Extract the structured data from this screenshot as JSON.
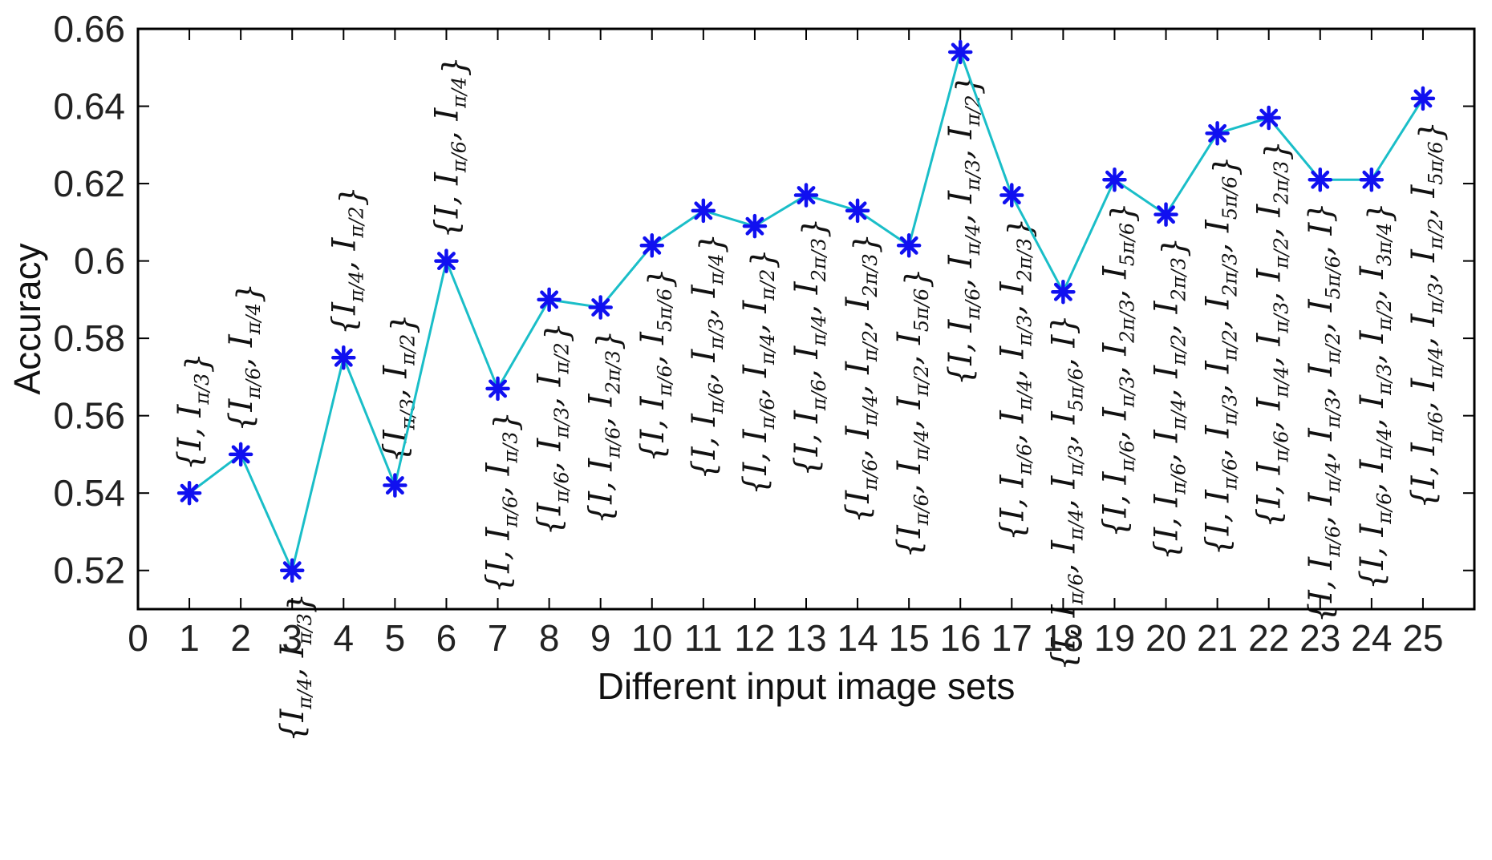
{
  "chart_data": {
    "type": "line",
    "xlabel": "Different input image sets",
    "ylabel": "Accuracy",
    "xlim": [
      0,
      26
    ],
    "ylim": [
      0.51,
      0.66
    ],
    "x_ticks": [
      "0",
      "1",
      "2",
      "3",
      "4",
      "5",
      "6",
      "7",
      "8",
      "9",
      "10",
      "11",
      "12",
      "13",
      "14",
      "15",
      "16",
      "17",
      "18",
      "19",
      "20",
      "21",
      "22",
      "23",
      "24",
      "25"
    ],
    "y_ticks": [
      "0.52",
      "0.54",
      "0.56",
      "0.58",
      "0.6",
      "0.62",
      "0.64",
      "0.66"
    ],
    "grid": false,
    "colors": {
      "line": "#1ABEC8",
      "marker": "#1010F0",
      "axes": "#000000"
    },
    "marker": "asterisk",
    "x": [
      1,
      2,
      3,
      4,
      5,
      6,
      7,
      8,
      9,
      10,
      11,
      12,
      13,
      14,
      15,
      16,
      17,
      18,
      19,
      20,
      21,
      22,
      23,
      24,
      25
    ],
    "values": [
      0.54,
      0.55,
      0.52,
      0.575,
      0.542,
      0.6,
      0.567,
      0.59,
      0.588,
      0.604,
      0.613,
      0.609,
      0.617,
      0.613,
      0.604,
      0.654,
      0.617,
      0.592,
      0.621,
      0.612,
      0.633,
      0.637,
      0.621,
      0.621,
      0.642
    ],
    "point_labels": [
      [
        [
          "I",
          ""
        ],
        [
          "I",
          "π/3"
        ]
      ],
      [
        [
          "I",
          "π/6"
        ],
        [
          "I",
          "π/4"
        ]
      ],
      [
        [
          "I",
          "π/4"
        ],
        [
          "I",
          "π/3"
        ]
      ],
      [
        [
          "I",
          "π/4"
        ],
        [
          "I",
          "π/2"
        ]
      ],
      [
        [
          "I",
          "π/3"
        ],
        [
          "I",
          "π/2"
        ]
      ],
      [
        [
          "I",
          ""
        ],
        [
          "I",
          "π/6"
        ],
        [
          "I",
          "π/4"
        ]
      ],
      [
        [
          "I",
          ""
        ],
        [
          "I",
          "π/6"
        ],
        [
          "I",
          "π/3"
        ]
      ],
      [
        [
          "I",
          "π/6"
        ],
        [
          "I",
          "π/3"
        ],
        [
          "I",
          "π/2"
        ]
      ],
      [
        [
          "I",
          ""
        ],
        [
          "I",
          "π/6"
        ],
        [
          "I",
          "2π/3"
        ]
      ],
      [
        [
          "I",
          ""
        ],
        [
          "I",
          "π/6"
        ],
        [
          "I",
          "5π/6"
        ]
      ],
      [
        [
          "I",
          ""
        ],
        [
          "I",
          "π/6"
        ],
        [
          "I",
          "π/3"
        ],
        [
          "I",
          "π/4"
        ]
      ],
      [
        [
          "I",
          ""
        ],
        [
          "I",
          "π/6"
        ],
        [
          "I",
          "π/4"
        ],
        [
          "I",
          "π/2"
        ]
      ],
      [
        [
          "I",
          ""
        ],
        [
          "I",
          "π/6"
        ],
        [
          "I",
          "π/4"
        ],
        [
          "I",
          "2π/3"
        ]
      ],
      [
        [
          "I",
          "π/6"
        ],
        [
          "I",
          "π/4"
        ],
        [
          "I",
          "π/2"
        ],
        [
          "I",
          "2π/3"
        ]
      ],
      [
        [
          "I",
          "π/6"
        ],
        [
          "I",
          "π/4"
        ],
        [
          "I",
          "π/2"
        ],
        [
          "I",
          "5π/6"
        ]
      ],
      [
        [
          "I",
          ""
        ],
        [
          "I",
          "π/6"
        ],
        [
          "I",
          "π/4"
        ],
        [
          "I",
          "π/3"
        ],
        [
          "I",
          "π/2"
        ]
      ],
      [
        [
          "I",
          ""
        ],
        [
          "I",
          "π/6"
        ],
        [
          "I",
          "π/4"
        ],
        [
          "I",
          "π/3"
        ],
        [
          "I",
          "2π/3"
        ]
      ],
      [
        [
          "I",
          ""
        ],
        [
          "I",
          "π/6"
        ],
        [
          "I",
          "π/4"
        ],
        [
          "I",
          "π/3"
        ],
        [
          "I",
          "5π/6"
        ],
        [
          "I",
          ""
        ]
      ],
      [
        [
          "I",
          ""
        ],
        [
          "I",
          "π/6"
        ],
        [
          "I",
          "π/3"
        ],
        [
          "I",
          "2π/3"
        ],
        [
          "I",
          "5π/6"
        ]
      ],
      [
        [
          "I",
          ""
        ],
        [
          "I",
          "π/6"
        ],
        [
          "I",
          "π/4"
        ],
        [
          "I",
          "π/2"
        ],
        [
          "I",
          "2π/3"
        ]
      ],
      [
        [
          "I",
          ""
        ],
        [
          "I",
          "π/6"
        ],
        [
          "I",
          "π/3"
        ],
        [
          "I",
          "π/2"
        ],
        [
          "I",
          "2π/3"
        ],
        [
          "I",
          "5π/6"
        ]
      ],
      [
        [
          "I",
          ""
        ],
        [
          "I",
          "π/6"
        ],
        [
          "I",
          "π/4"
        ],
        [
          "I",
          "π/3"
        ],
        [
          "I",
          "π/2"
        ],
        [
          "I",
          "2π/3"
        ]
      ],
      [
        [
          "I",
          ""
        ],
        [
          "I",
          "π/6"
        ],
        [
          "I",
          "π/4"
        ],
        [
          "I",
          "π/3"
        ],
        [
          "I",
          "π/2"
        ],
        [
          "I",
          "5π/6"
        ],
        [
          "I",
          ""
        ]
      ],
      [
        [
          "I",
          ""
        ],
        [
          "I",
          "π/6"
        ],
        [
          "I",
          "π/4"
        ],
        [
          "I",
          "π/3"
        ],
        [
          "I",
          "π/2"
        ],
        [
          "I",
          "3π/4"
        ]
      ],
      [
        [
          "I",
          ""
        ],
        [
          "I",
          "π/6"
        ],
        [
          "I",
          "π/4"
        ],
        [
          "I",
          "π/3"
        ],
        [
          "I",
          "π/2"
        ],
        [
          "I",
          "5π/6"
        ]
      ]
    ],
    "label_side": [
      "above",
      "above",
      "below",
      "above",
      "above",
      "above",
      "below",
      "below",
      "below",
      "below",
      "below",
      "below",
      "below",
      "below",
      "below",
      "below",
      "below",
      "below",
      "below",
      "below",
      "below",
      "below",
      "below",
      "below",
      "below"
    ]
  }
}
